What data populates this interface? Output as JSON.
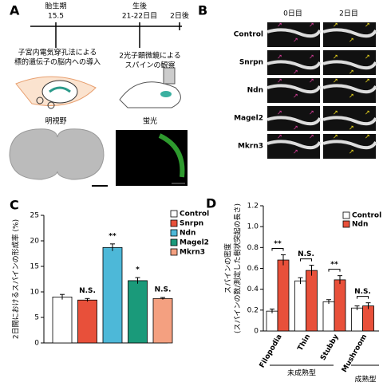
{
  "panels": {
    "a": {
      "label": "A",
      "timeline": [
        "胎生期",
        "15.5",
        "生後",
        "21-22日目",
        "2日後"
      ],
      "step1": [
        "子宮内電気穿孔法による",
        "標的遺伝子の脳内への導入"
      ],
      "step2": [
        "2光子顕微鏡による",
        "スパインの観察"
      ],
      "bright": "明視野",
      "fluor": "蛍光"
    },
    "b": {
      "label": "B",
      "columns": [
        "0日目",
        "2日目"
      ],
      "rows": [
        "Control",
        "Snrpn",
        "Ndn",
        "Magel2",
        "Mkrn3"
      ]
    }
  },
  "chart_data": [
    {
      "type": "bar",
      "label": "C",
      "ylabel": "2日間におけるスパインの形成率 (%)",
      "categories": [
        "Control",
        "Snrpn",
        "Ndn",
        "Magel2",
        "Mkrn3"
      ],
      "values": [
        9.0,
        8.4,
        18.7,
        12.2,
        8.7
      ],
      "errors": [
        0.5,
        0.3,
        0.7,
        0.6,
        0.2
      ],
      "colors": [
        "#ffffff",
        "#e8503a",
        "#4db8d8",
        "#1a9a7a",
        "#f4a080"
      ],
      "annotations": [
        null,
        "N.S.",
        "**",
        "*",
        "N.S."
      ],
      "ylim": [
        0,
        25
      ],
      "yticks": [
        0,
        5,
        10,
        15,
        20,
        25
      ],
      "legend": "upper right"
    },
    {
      "type": "grouped-bar",
      "label": "D",
      "ylabel": [
        "スパインの密度",
        "(スパインの数/測定した樹状突起の長さ)"
      ],
      "categories": [
        "Filopodia",
        "Thin",
        "Stubby",
        "Mushroom"
      ],
      "series": [
        {
          "name": "Control",
          "color": "#ffffff",
          "values": [
            0.19,
            0.48,
            0.28,
            0.22
          ],
          "errors": [
            0.02,
            0.03,
            0.02,
            0.02
          ]
        },
        {
          "name": "Ndn",
          "color": "#e8503a",
          "values": [
            0.68,
            0.58,
            0.49,
            0.24
          ],
          "errors": [
            0.05,
            0.05,
            0.04,
            0.03
          ]
        }
      ],
      "annotations": [
        "**",
        "N.S.",
        "**",
        "N.S."
      ],
      "groups": [
        "未成熟型",
        "成熟型"
      ],
      "ylim": [
        0,
        1.2
      ],
      "yticks": [
        0,
        0.2,
        0.4,
        0.6,
        0.8,
        {
          "value": 1,
          "label": "1.0"
        },
        1.2
      ],
      "legend": "upper right"
    }
  ]
}
